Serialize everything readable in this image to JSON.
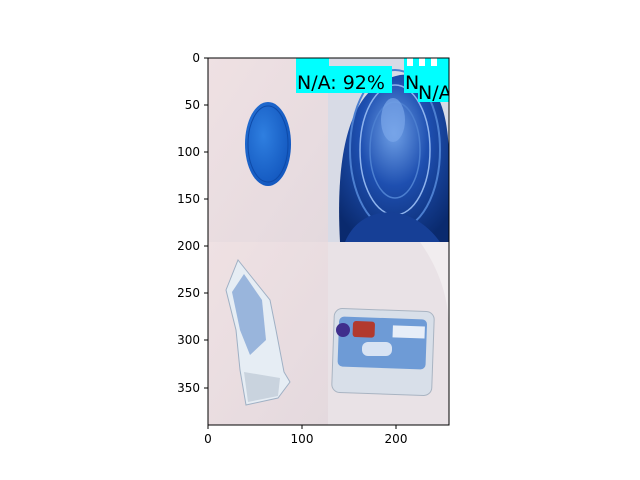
{
  "plot": {
    "x_ticks": [
      "0",
      "100",
      "200"
    ],
    "y_ticks": [
      "0",
      "50",
      "100",
      "150",
      "200",
      "250",
      "300",
      "350"
    ]
  },
  "detections": [
    {
      "label": "N/A: 92%"
    },
    {
      "label": "N"
    },
    {
      "label": "N/A"
    }
  ],
  "box_color": "#00ffff"
}
